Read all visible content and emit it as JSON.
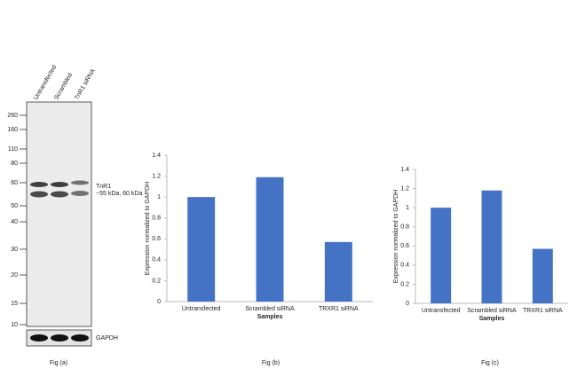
{
  "blot": {
    "lanes": [
      "Untransfected",
      "Scrambled",
      "TnR1 siRNA"
    ],
    "markers": [
      260,
      160,
      110,
      80,
      60,
      50,
      40,
      30,
      20,
      15,
      10
    ],
    "band_label": "TnR1",
    "band_size": "~55 kDa, 60 kDa",
    "loading_label": "GAPDH",
    "caption": "Fig (a)"
  },
  "chart_data": [
    {
      "type": "bar",
      "caption": "Fig (b)",
      "ylabel": "Expression  normalized to GAPDH",
      "xlabel": "Samples",
      "categories": [
        "Untransfected",
        "Scrambled siRNA",
        "TRXR1 siRNA"
      ],
      "values": [
        1.0,
        1.19,
        0.57
      ],
      "color": "#4472c4",
      "ylim": [
        0,
        1.4
      ],
      "yticks": [
        0,
        0.2,
        0.4,
        0.6,
        0.8,
        1,
        1.2,
        1.4
      ]
    },
    {
      "type": "bar",
      "caption": "Fig (c)",
      "ylabel": "Expression  normalized to GAPDH",
      "xlabel": "Samples",
      "categories": [
        "Untransfected",
        "Scrambled siRNA",
        "TRXR1 siRNA"
      ],
      "values": [
        1.0,
        1.18,
        0.57
      ],
      "color": "#4472c4",
      "ylim": [
        0,
        1.4
      ],
      "yticks": [
        0,
        0.2,
        0.4,
        0.6,
        0.8,
        1,
        1.2,
        1.4
      ]
    }
  ]
}
